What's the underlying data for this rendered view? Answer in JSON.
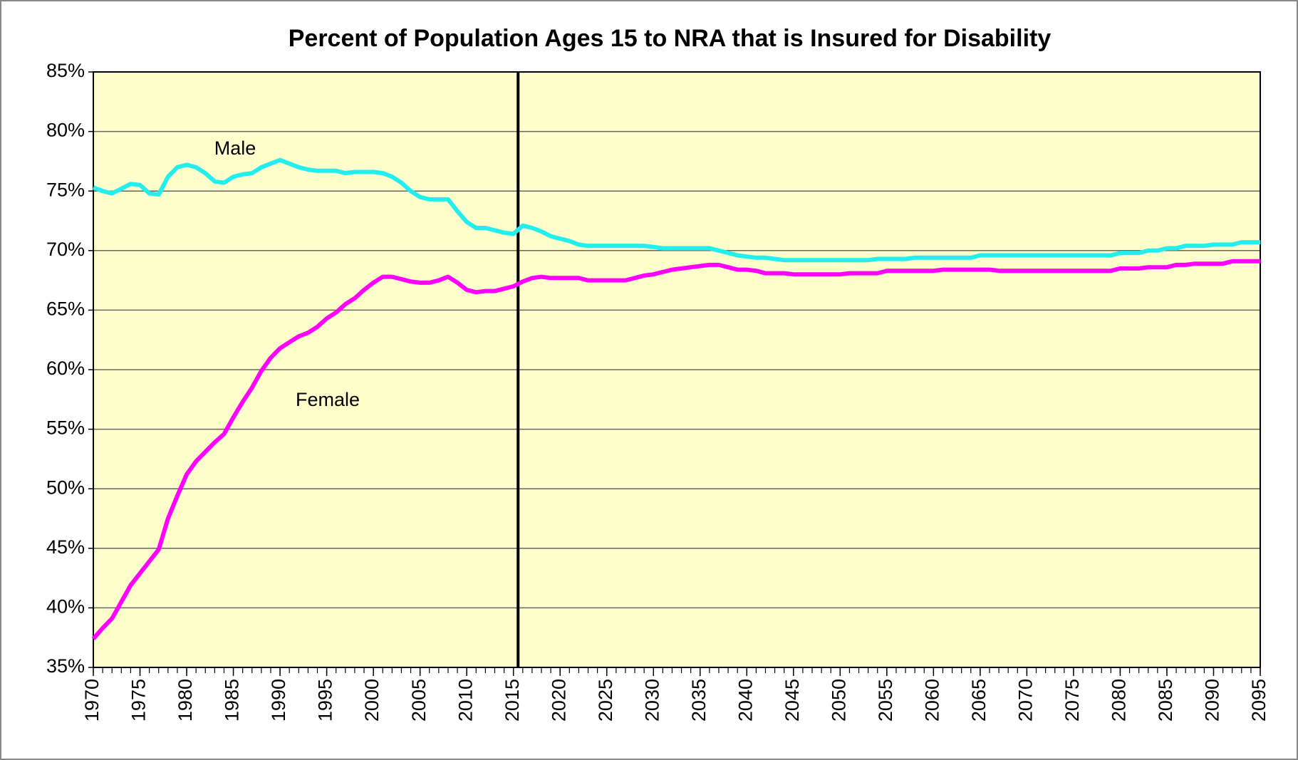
{
  "chart_data": {
    "type": "line",
    "title": "Percent of Population Ages 15 to NRA that is Insured for Disability",
    "x": [
      1970,
      1971,
      1972,
      1973,
      1974,
      1975,
      1976,
      1977,
      1978,
      1979,
      1980,
      1981,
      1982,
      1983,
      1984,
      1985,
      1986,
      1987,
      1988,
      1989,
      1990,
      1991,
      1992,
      1993,
      1994,
      1995,
      1996,
      1997,
      1998,
      1999,
      2000,
      2001,
      2002,
      2003,
      2004,
      2005,
      2006,
      2007,
      2008,
      2009,
      2010,
      2011,
      2012,
      2013,
      2014,
      2015,
      2016,
      2017,
      2018,
      2019,
      2020,
      2021,
      2022,
      2023,
      2024,
      2025,
      2026,
      2027,
      2028,
      2029,
      2030,
      2031,
      2032,
      2033,
      2034,
      2035,
      2036,
      2037,
      2038,
      2039,
      2040,
      2041,
      2042,
      2043,
      2044,
      2045,
      2046,
      2047,
      2048,
      2049,
      2050,
      2051,
      2052,
      2053,
      2054,
      2055,
      2056,
      2057,
      2058,
      2059,
      2060,
      2061,
      2062,
      2063,
      2064,
      2065,
      2066,
      2067,
      2068,
      2069,
      2070,
      2071,
      2072,
      2073,
      2074,
      2075,
      2076,
      2077,
      2078,
      2079,
      2080,
      2081,
      2082,
      2083,
      2084,
      2085,
      2086,
      2087,
      2088,
      2089,
      2090,
      2091,
      2092,
      2093,
      2094,
      2095
    ],
    "series": [
      {
        "name": "Male",
        "color": "#22eeee",
        "values": [
          75.3,
          75.0,
          74.8,
          75.2,
          75.6,
          75.5,
          74.8,
          74.7,
          76.2,
          77.0,
          77.2,
          77.0,
          76.5,
          75.8,
          75.7,
          76.2,
          76.4,
          76.5,
          77.0,
          77.3,
          77.6,
          77.3,
          77.0,
          76.8,
          76.7,
          76.7,
          76.7,
          76.5,
          76.6,
          76.6,
          76.6,
          76.5,
          76.2,
          75.7,
          75.0,
          74.5,
          74.3,
          74.3,
          74.3,
          73.3,
          72.4,
          71.9,
          71.9,
          71.7,
          71.5,
          71.4,
          72.1,
          71.9,
          71.6,
          71.2,
          71.0,
          70.8,
          70.5,
          70.4,
          70.4,
          70.4,
          70.4,
          70.4,
          70.4,
          70.4,
          70.3,
          70.2,
          70.2,
          70.2,
          70.2,
          70.2,
          70.2,
          70.0,
          69.8,
          69.6,
          69.5,
          69.4,
          69.4,
          69.3,
          69.2,
          69.2,
          69.2,
          69.2,
          69.2,
          69.2,
          69.2,
          69.2,
          69.2,
          69.2,
          69.3,
          69.3,
          69.3,
          69.3,
          69.4,
          69.4,
          69.4,
          69.4,
          69.4,
          69.4,
          69.4,
          69.6,
          69.6,
          69.6,
          69.6,
          69.6,
          69.6,
          69.6,
          69.6,
          69.6,
          69.6,
          69.6,
          69.6,
          69.6,
          69.6,
          69.6,
          69.8,
          69.8,
          69.8,
          70.0,
          70.0,
          70.2,
          70.2,
          70.4,
          70.4,
          70.4,
          70.5,
          70.5,
          70.5,
          70.7,
          70.7,
          70.7
        ]
      },
      {
        "name": "Female",
        "color": "#ff00ff",
        "values": [
          37.4,
          38.3,
          39.1,
          40.5,
          41.9,
          42.9,
          43.9,
          44.9,
          47.5,
          49.4,
          51.2,
          52.3,
          53.1,
          53.9,
          54.6,
          56.0,
          57.3,
          58.5,
          59.9,
          61.0,
          61.8,
          62.3,
          62.8,
          63.1,
          63.6,
          64.3,
          64.8,
          65.5,
          66.0,
          66.7,
          67.3,
          67.8,
          67.8,
          67.6,
          67.4,
          67.3,
          67.3,
          67.5,
          67.8,
          67.3,
          66.7,
          66.5,
          66.6,
          66.6,
          66.8,
          67.0,
          67.4,
          67.7,
          67.8,
          67.7,
          67.7,
          67.7,
          67.7,
          67.5,
          67.5,
          67.5,
          67.5,
          67.5,
          67.7,
          67.9,
          68.0,
          68.2,
          68.4,
          68.5,
          68.6,
          68.7,
          68.8,
          68.8,
          68.6,
          68.4,
          68.4,
          68.3,
          68.1,
          68.1,
          68.1,
          68.0,
          68.0,
          68.0,
          68.0,
          68.0,
          68.0,
          68.1,
          68.1,
          68.1,
          68.1,
          68.3,
          68.3,
          68.3,
          68.3,
          68.3,
          68.3,
          68.4,
          68.4,
          68.4,
          68.4,
          68.4,
          68.4,
          68.3,
          68.3,
          68.3,
          68.3,
          68.3,
          68.3,
          68.3,
          68.3,
          68.3,
          68.3,
          68.3,
          68.3,
          68.3,
          68.5,
          68.5,
          68.5,
          68.6,
          68.6,
          68.6,
          68.8,
          68.8,
          68.9,
          68.9,
          68.9,
          68.9,
          69.1,
          69.1,
          69.1,
          69.1
        ]
      }
    ],
    "xlim": [
      1970,
      2095
    ],
    "xticks": [
      1970,
      1975,
      1980,
      1985,
      1990,
      1995,
      2000,
      2005,
      2010,
      2015,
      2020,
      2025,
      2030,
      2035,
      2040,
      2045,
      2050,
      2055,
      2060,
      2065,
      2070,
      2075,
      2080,
      2085,
      2090,
      2095
    ],
    "ylim": [
      35,
      85
    ],
    "yticks": [
      {
        "value": 35,
        "label": "35%"
      },
      {
        "value": 40,
        "label": "40%"
      },
      {
        "value": 45,
        "label": "45%"
      },
      {
        "value": 50,
        "label": "50%"
      },
      {
        "value": 55,
        "label": "55%"
      },
      {
        "value": 60,
        "label": "60%"
      },
      {
        "value": 65,
        "label": "65%"
      },
      {
        "value": 70,
        "label": "70%"
      },
      {
        "value": 75,
        "label": "75%"
      },
      {
        "value": 80,
        "label": "80%"
      },
      {
        "value": 85,
        "label": "85%"
      }
    ],
    "grid": true,
    "plot_background": "#ffffcc",
    "vertical_line_x": 2015.5
  }
}
